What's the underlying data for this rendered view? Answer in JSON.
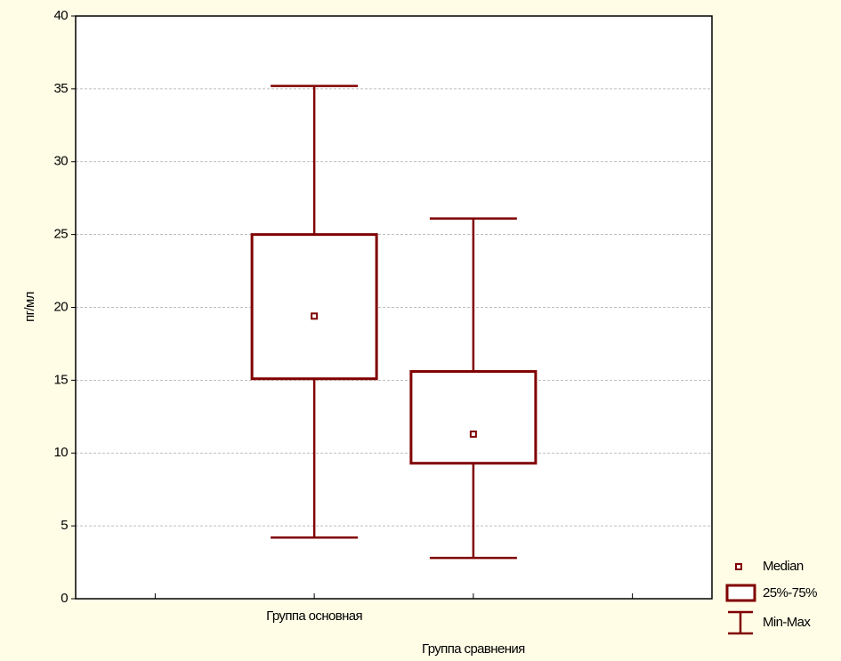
{
  "chart_data": {
    "type": "box",
    "ylabel": "пг/мл",
    "categories": [
      null,
      "Группа основная",
      "Группа сравнения",
      null
    ],
    "series": [
      {
        "color": "#800000",
        "min": [
          null,
          4.2,
          2.8,
          null
        ],
        "q1": [
          null,
          15.1,
          9.3,
          null
        ],
        "median": [
          null,
          19.4,
          11.3,
          null
        ],
        "q3": [
          null,
          25,
          15.6,
          null
        ],
        "max": [
          null,
          35.2,
          26.1,
          null
        ]
      }
    ],
    "legend_labels": {
      "median": "Median",
      "box": "25%-75%",
      "whisker": "Min-Max"
    },
    "legend_position": "lower right",
    "ylim": [
      0,
      40
    ],
    "yticks": [
      0,
      5,
      10,
      15,
      20,
      25,
      30,
      35,
      40
    ],
    "grid": true
  }
}
